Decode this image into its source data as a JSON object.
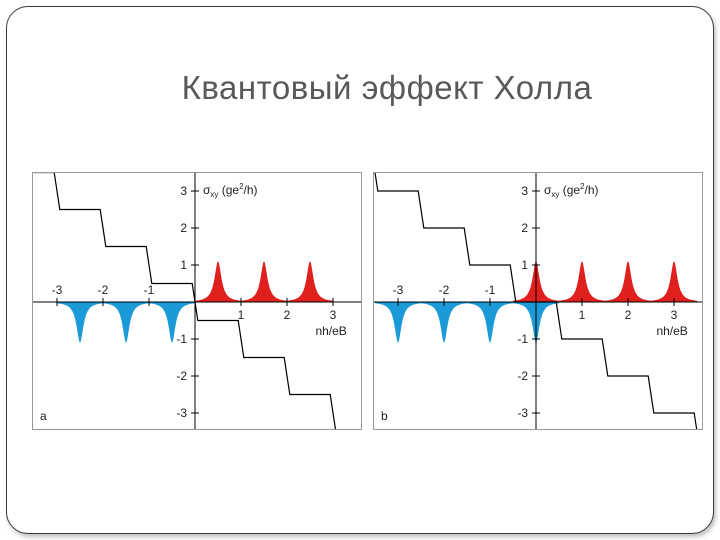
{
  "slide": {
    "title": "Квантовый эффект Холла"
  },
  "chart_data": [
    {
      "type": "line",
      "panel_label": "a",
      "ylabel_base": "σ",
      "ylabel_sub": "xy",
      "ylabel_rest": " (ge",
      "ylabel_sup": "2",
      "ylabel_end": "/h)",
      "xlabel": "nh/eB",
      "x_ticks": [
        -3,
        -2,
        -1,
        1,
        2,
        3
      ],
      "x_tick_labels": [
        "-3",
        "-2",
        "-1",
        "1",
        "2",
        "3"
      ],
      "y_ticks": [
        3,
        2,
        1,
        -1,
        -2,
        -3
      ],
      "y_tick_labels": [
        "3",
        "2",
        "1",
        "-1",
        "-2",
        "-3"
      ],
      "xlim": [
        -3.5,
        3.5
      ],
      "ylim": [
        -3.5,
        3.5
      ],
      "staircase_plateaus": [
        3.5,
        2.5,
        1.5,
        0.5,
        -0.5,
        -1.5,
        -2.5,
        -3.5
      ],
      "peak_positions_positive": [
        0.5,
        1.5,
        2.5
      ],
      "peak_positions_negative": [
        -0.5,
        -1.5,
        -2.5
      ],
      "peak_height": 1.1,
      "colors": {
        "positive_peaks": "#e0201c",
        "negative_peaks": "#1a9ad6",
        "step_line": "#000000"
      }
    },
    {
      "type": "line",
      "panel_label": "b",
      "ylabel_base": "σ",
      "ylabel_sub": "xy",
      "ylabel_rest": " (ge",
      "ylabel_sup": "2",
      "ylabel_end": "/h)",
      "xlabel": "nh/eB",
      "x_ticks": [
        -3,
        -2,
        -1,
        1,
        2,
        3
      ],
      "x_tick_labels": [
        "-3",
        "-2",
        "-1",
        "1",
        "2",
        "3"
      ],
      "y_ticks": [
        3,
        2,
        1,
        -1,
        -2,
        -3
      ],
      "y_tick_labels": [
        "3",
        "2",
        "1",
        "-1",
        "-2",
        "-3"
      ],
      "xlim": [
        -3.5,
        3.5
      ],
      "ylim": [
        -3.5,
        3.5
      ],
      "staircase_plateaus": [
        4,
        3,
        2,
        1,
        0,
        -1,
        -2,
        -3,
        -4
      ],
      "peak_positions_positive": [
        0,
        1,
        2,
        3
      ],
      "peak_positions_negative": [
        -1,
        -2,
        -3,
        0
      ],
      "peak_height": 1.1,
      "colors": {
        "positive_peaks": "#e0201c",
        "negative_peaks": "#1a9ad6",
        "step_line": "#000000"
      }
    }
  ]
}
